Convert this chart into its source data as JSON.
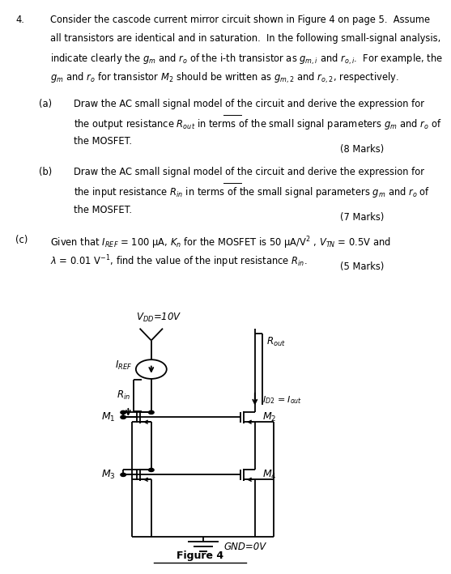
{
  "background_color": "#ffffff",
  "text_color": "#000000",
  "figure_label": "Figure 4",
  "q_num": "4.",
  "main_text_lines": [
    "Consider the cascode current mirror circuit shown in Figure 4 on page 5.  Assume",
    "all transistors are identical and in saturation.  In the following small-signal analysis,",
    "indicate clearly the $g_m$ and $r_o$ of the i-th transistor as $g_{m,i}$ and $r_{o,i}$.  For example, the",
    "$g_m$ and $r_o$ for transistor $M_2$ should be written as $g_{m,2}$ and $r_{o,2}$, respectively."
  ],
  "part_a_label": "(a)",
  "part_a_lines": [
    "Draw the AC small signal model of the circuit and \\underline{derive} the expression for",
    "the output resistance $R_{out}$ in terms of the small signal parameters $g_m$ and $r_o$ of",
    "the MOSFET."
  ],
  "part_a_marks": "(8 Marks)",
  "part_b_label": "(b)",
  "part_b_lines": [
    "Draw the AC small signal model of the circuit and \\underline{derive} the expression for",
    "the input resistance $R_{in}$ in terms of the small signal parameters $g_m$ and $r_o$ of",
    "the MOSFET."
  ],
  "part_b_marks": "(7 Marks)",
  "part_c_label": "(c)",
  "part_c_lines": [
    "Given that $I_{REF}$ = 100 μA, $K_n$ for the MOSFET is 50 μA/V$^2$ , $V_{TN}$ = 0.5V and",
    "$\\lambda$ = 0.01 V$^{-1}$, find the value of the input resistance $R_{in}$."
  ],
  "part_c_marks": "(5 Marks)",
  "vdd_label": "$V_{DD}$=10V",
  "iref_label": "$I_{REF}$",
  "rin_label": "$R_{in}$",
  "rout_label": "$R_{out}$",
  "id2_label": "$I_{D2}$ = $I_{out}$",
  "gnd_label": "GND=0V",
  "m1_label": "$M_1$",
  "m2_label": "$M_2$",
  "m3_label": "$M_3$",
  "m4_label": "$M_4$"
}
